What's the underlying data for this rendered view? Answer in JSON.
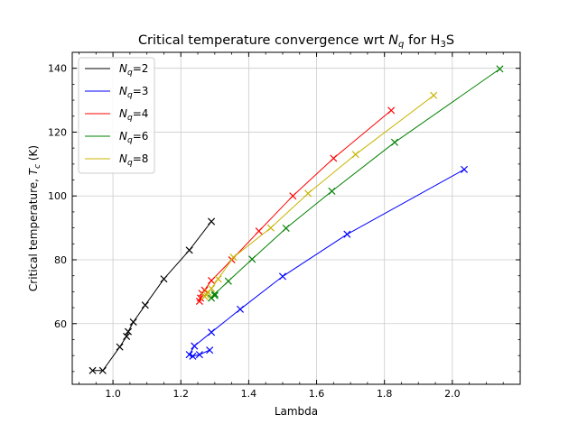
{
  "chart_data": {
    "type": "line",
    "title": "Critical temperature convergence wrt N_q for H3S",
    "title_parts": {
      "prefix": "Critical temperature convergence wrt ",
      "var": "N",
      "var_sub": "q",
      "mid": " for H",
      "chem_sub": "3",
      "suffix": "S"
    },
    "xlabel": "Lambda",
    "ylabel": "Critical temperature, T_c (K)",
    "ylabel_parts": {
      "prefix": "Critical temperature, ",
      "var": "T",
      "var_sub": "c",
      "suffix": " (K)"
    },
    "xlim": [
      0.88,
      2.2
    ],
    "ylim": [
      41,
      145
    ],
    "xticks": [
      1.0,
      1.2,
      1.4,
      1.6,
      1.8,
      2.0
    ],
    "xtick_labels": [
      "1.0",
      "1.2",
      "1.4",
      "1.6",
      "1.8",
      "2.0"
    ],
    "yticks": [
      60,
      80,
      100,
      120,
      140
    ],
    "ytick_labels": [
      "60",
      "80",
      "100",
      "120",
      "140"
    ],
    "grid": true,
    "legend_placement": "upper-left",
    "marker": "x",
    "series": [
      {
        "name": "Nq=2",
        "legend_var": "N",
        "legend_sub": "q",
        "legend_value": "=2",
        "color": "#000000",
        "x": [
          0.94,
          0.97,
          1.02,
          1.04,
          1.045,
          1.06,
          1.095,
          1.15,
          1.225,
          1.29
        ],
        "y": [
          45.3,
          45.3,
          52.7,
          56.0,
          57.5,
          60.5,
          65.8,
          74.0,
          83.0,
          92.0
        ]
      },
      {
        "name": "Nq=3",
        "legend_var": "N",
        "legend_sub": "q",
        "legend_value": "=3",
        "color": "#0000ff",
        "x": [
          1.285,
          1.255,
          1.235,
          1.225,
          1.24,
          1.29,
          1.375,
          1.5,
          1.69,
          2.035
        ],
        "y": [
          51.7,
          50.3,
          49.8,
          50.3,
          53.0,
          57.3,
          64.5,
          74.8,
          88.0,
          108.3
        ]
      },
      {
        "name": "Nq=4",
        "legend_var": "N",
        "legend_sub": "q",
        "legend_value": "=4",
        "color": "#ff0000",
        "x": [
          1.255,
          1.258,
          1.262,
          1.27,
          1.29,
          1.35,
          1.43,
          1.53,
          1.65,
          1.82
        ],
        "y": [
          67.0,
          68.0,
          69.5,
          70.5,
          73.5,
          80.0,
          89.0,
          100.0,
          111.8,
          126.8
        ]
      },
      {
        "name": "Nq=6",
        "legend_var": "N",
        "legend_sub": "q",
        "legend_value": "=6",
        "color": "#008000",
        "x": [
          1.29,
          1.3,
          1.3,
          1.34,
          1.41,
          1.51,
          1.645,
          1.83,
          2.14
        ],
        "y": [
          68.0,
          68.8,
          69.3,
          73.3,
          80.2,
          89.9,
          101.5,
          116.8,
          139.8
        ]
      },
      {
        "name": "Nq=8",
        "legend_var": "N",
        "legend_sub": "q",
        "legend_value": "=8",
        "color": "#c8b400",
        "x": [
          1.27,
          1.275,
          1.28,
          1.29,
          1.31,
          1.355,
          1.465,
          1.575,
          1.715,
          1.945
        ],
        "y": [
          68.5,
          69.0,
          69.8,
          71.0,
          74.0,
          80.8,
          90.0,
          100.8,
          113.0,
          131.5
        ]
      }
    ]
  }
}
